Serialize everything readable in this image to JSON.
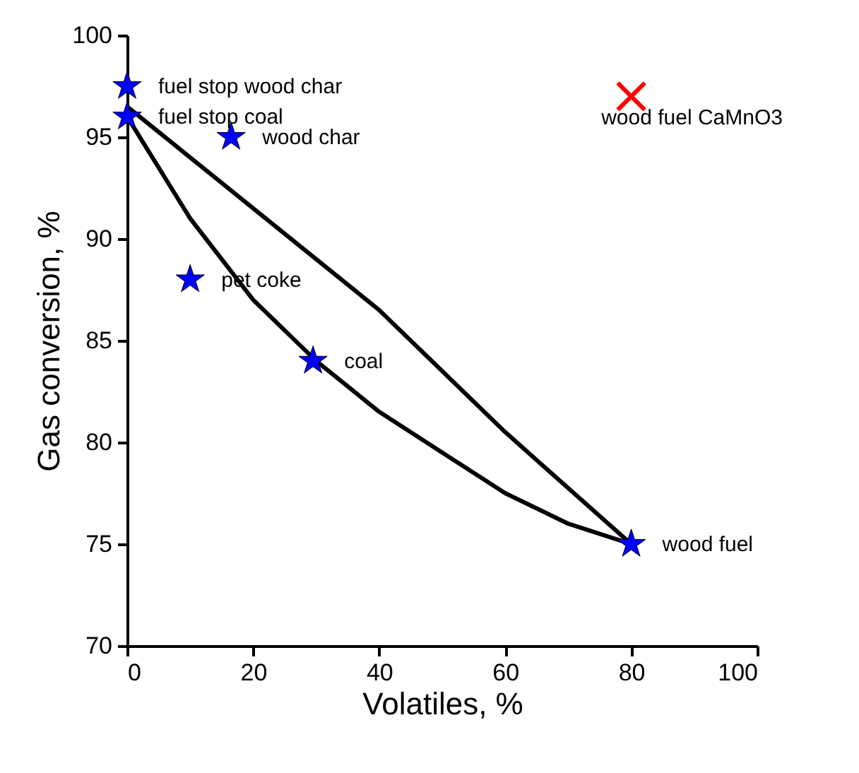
{
  "chart_data": {
    "type": "scatter",
    "xlabel": "Volatiles, %",
    "ylabel": "Gas conversion, %",
    "xlim": [
      0,
      100
    ],
    "xticks": [
      0,
      20,
      40,
      60,
      80,
      100
    ],
    "ylim": [
      70,
      100
    ],
    "yticks": [
      70,
      75,
      80,
      85,
      90,
      95,
      100
    ],
    "grid": false,
    "series": [
      {
        "type": "line",
        "color": "#000000",
        "marker": "none",
        "line_style": "solid",
        "x": [
          0,
          20,
          40,
          60,
          80
        ],
        "values": [
          96.5,
          91.5,
          86.5,
          80.5,
          75
        ]
      },
      {
        "type": "line",
        "color": "#000000",
        "marker": "none",
        "line_style": "solid",
        "x": [
          0,
          10,
          20,
          30,
          40,
          50,
          60,
          70,
          80
        ],
        "values": [
          96,
          91,
          87,
          84,
          81.5,
          79.5,
          77.5,
          76,
          75
        ]
      },
      {
        "color": "#0000ff",
        "marker": "star",
        "x": [
          0,
          0,
          16.5,
          10,
          29.5,
          80
        ],
        "values": [
          97.5,
          96,
          95,
          88,
          84,
          75
        ]
      },
      {
        "color": "#ff0000",
        "marker": "cross",
        "x": [
          80
        ],
        "values": [
          97
        ]
      }
    ],
    "annotations": [
      {
        "text": "fuel stop wood char",
        "x": 0,
        "y": 97.5
      },
      {
        "text": "fuel stop coal",
        "x": 0,
        "y": 96
      },
      {
        "text": "wood char",
        "x": 16.5,
        "y": 95
      },
      {
        "text": "pet coke",
        "x": 10,
        "y": 88
      },
      {
        "text": "coal",
        "x": 29.5,
        "y": 84
      },
      {
        "text": "wood fuel",
        "x": 80,
        "y": 75
      },
      "wood fuel CaMnO3"
    ]
  }
}
